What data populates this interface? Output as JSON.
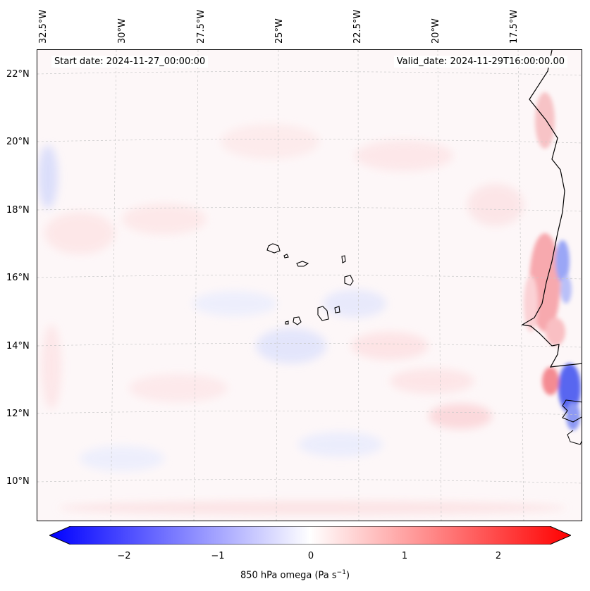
{
  "map": {
    "start_date": "Start date: 2024-11-27_00:00:00",
    "valid_date": "Valid_date: 2024-11-29T16:00:00.00",
    "lon_labels": [
      "32.5°W",
      "30°W",
      "27.5°W",
      "25°W",
      "22.5°W",
      "20°W",
      "17.5°W"
    ],
    "lat_labels": [
      "22°N",
      "20°N",
      "18°N",
      "16°N",
      "14°N",
      "12°N",
      "10°N"
    ]
  },
  "colorbar": {
    "ticks": [
      "−2",
      "−1",
      "0",
      "1",
      "2"
    ],
    "label": "850 hPa omega (Pa s",
    "label_sup": "−1",
    "label_end": ")",
    "range": [
      -2.5,
      2.5
    ],
    "colors": {
      "min": "#0000ff",
      "mid": "#ffffff",
      "max": "#ff0000"
    }
  }
}
